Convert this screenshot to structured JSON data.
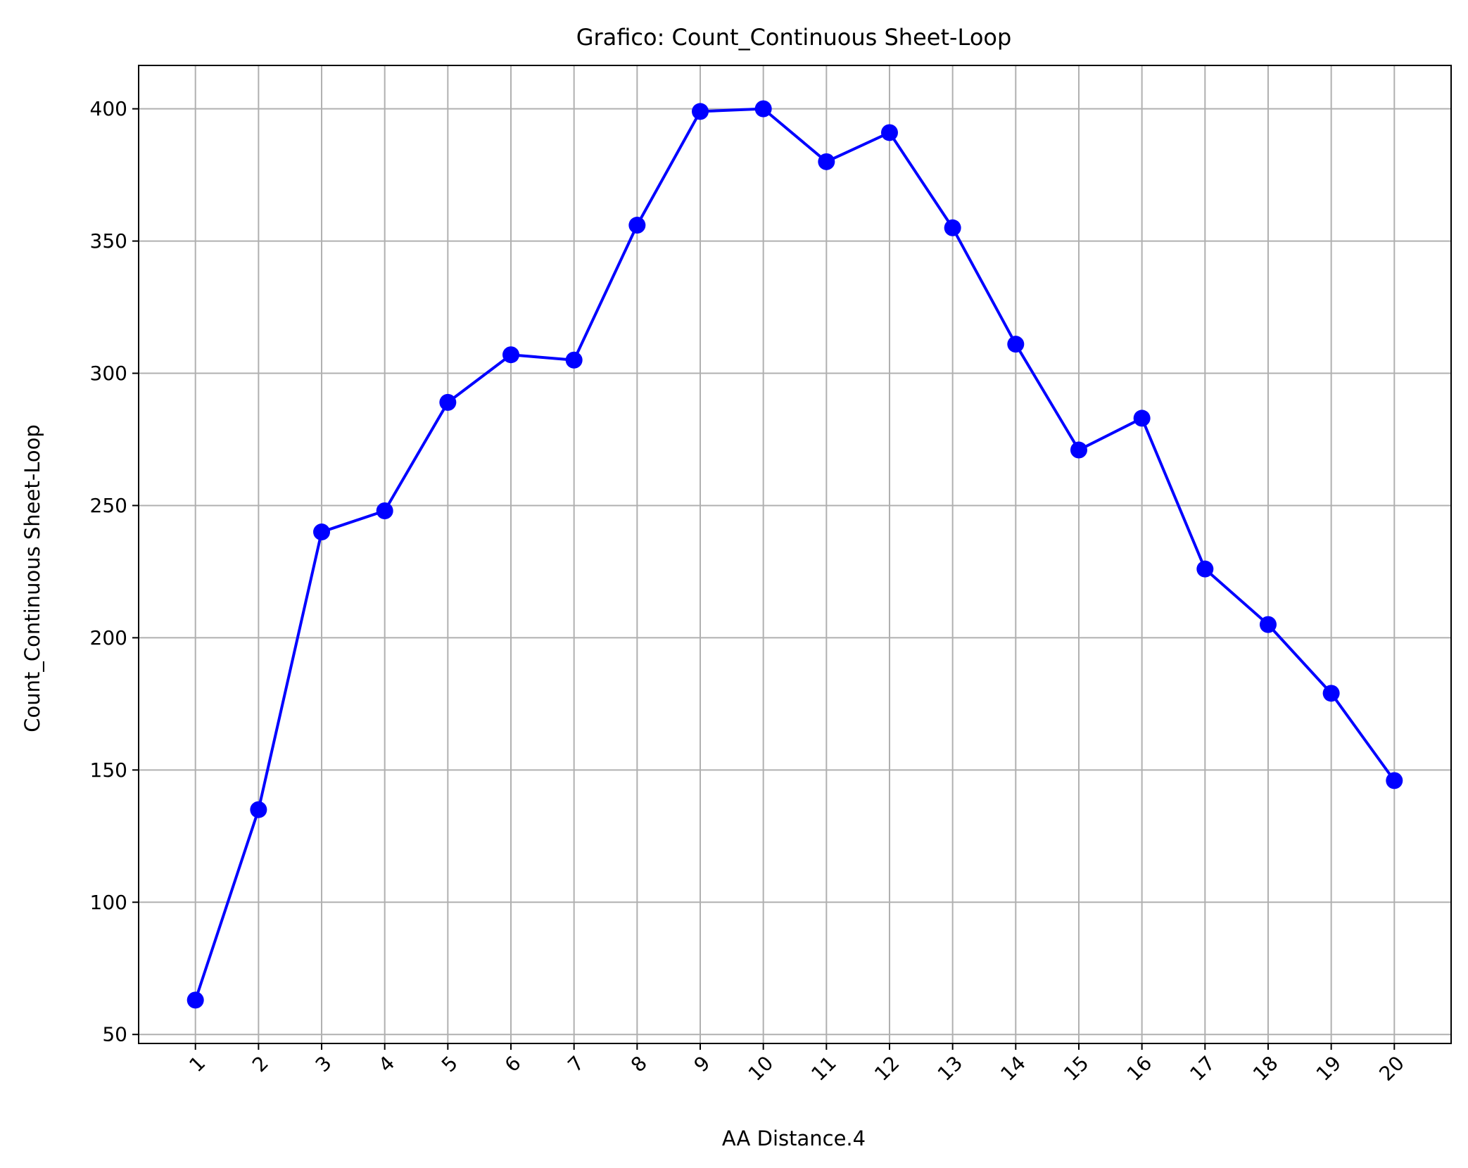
{
  "chart_data": {
    "type": "line",
    "title": "Grafico: Count_Continuous Sheet-Loop",
    "xlabel": "AA Distance.4",
    "ylabel": "Count_Continuous Sheet-Loop",
    "x": [
      1,
      2,
      3,
      4,
      5,
      6,
      7,
      8,
      9,
      10,
      11,
      12,
      13,
      14,
      15,
      16,
      17,
      18,
      19,
      20
    ],
    "x_tick_labels": [
      "1",
      "2",
      "3",
      "4",
      "5",
      "6",
      "7",
      "8",
      "9",
      "10",
      "11",
      "12",
      "13",
      "14",
      "15",
      "16",
      "17",
      "18",
      "19",
      "20"
    ],
    "y_ticks": [
      50,
      100,
      150,
      200,
      250,
      300,
      350,
      400
    ],
    "y_tick_labels": [
      "50",
      "100",
      "150",
      "200",
      "250",
      "300",
      "350",
      "400"
    ],
    "series": [
      {
        "values": [
          63,
          135,
          240,
          248,
          289,
          307,
          305,
          356,
          399,
          400,
          380,
          391,
          355,
          311,
          271,
          283,
          226,
          205,
          179,
          146
        ],
        "color": "#0000ff",
        "marker": "circle"
      }
    ],
    "xlim": [
      0.1,
      20.9
    ],
    "ylim": [
      46.6,
      416.4
    ],
    "grid": true,
    "grid_color": "#b0b0b0",
    "x_tick_rotation": "45deg",
    "legend": false
  }
}
